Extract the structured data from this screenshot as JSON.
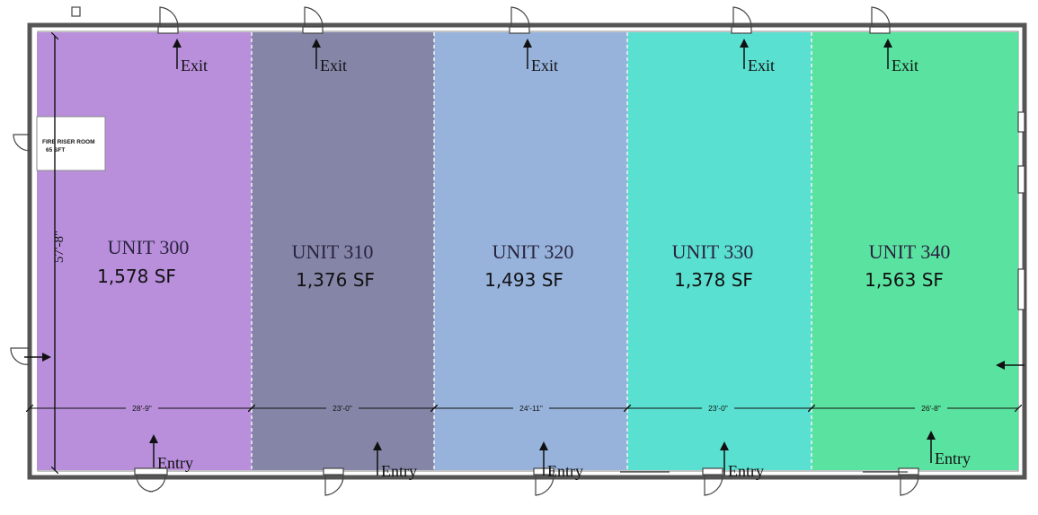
{
  "units": [
    {
      "name": "UNIT 300",
      "area": "1,578 SF",
      "width": "28'-9\"",
      "color": "#b98fdc"
    },
    {
      "name": "UNIT 310",
      "area": "1,376 SF",
      "width": "23'-0\"",
      "color": "#8585a8"
    },
    {
      "name": "UNIT 320",
      "area": "1,493 SF",
      "width": "24'-11\"",
      "color": "#97b3dc"
    },
    {
      "name": "UNIT 330",
      "area": "1,378 SF",
      "width": "23'-0\"",
      "color": "#5ae0d0"
    },
    {
      "name": "UNIT 340",
      "area": "1,563 SF",
      "width": "26'-8\"",
      "color": "#5ae2a0"
    }
  ],
  "labels": {
    "exit": "Exit",
    "entry": "Entry"
  },
  "depth": "57'-8\"",
  "fire_riser": {
    "line1": "FIRE RISER ROOM",
    "line2": "65 SFT"
  }
}
